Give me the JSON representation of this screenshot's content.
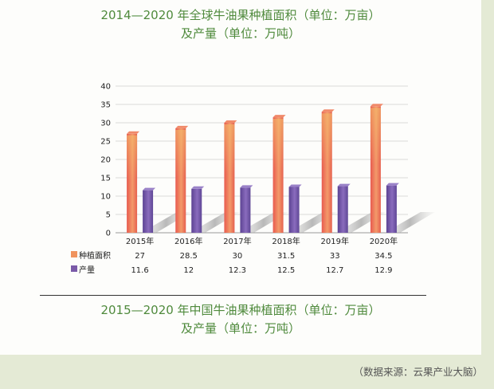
{
  "titles": {
    "line1": "2014—2020 年全球牛油果种植面积（单位：万亩）",
    "line2": "及产量（单位：万吨）",
    "line3": "2015—2020 年中国牛油果种植面积（单位：万亩）",
    "line4": "及产量（单位：万吨）"
  },
  "source": "（数据来源：云果产业大脑）",
  "chart_data": {
    "type": "bar",
    "categories": [
      "2015年",
      "2016年",
      "2017年",
      "2018年",
      "2019年",
      "2020年"
    ],
    "series": [
      {
        "name": "种植面积",
        "values": [
          27,
          28.5,
          30,
          31.5,
          33,
          34.5
        ],
        "color": "#e9725e"
      },
      {
        "name": "产量",
        "values": [
          11.6,
          12,
          12.3,
          12.5,
          12.7,
          12.9
        ],
        "color": "#7a5aa8"
      }
    ],
    "table_labels": {
      "s0": [
        "27",
        "28.5",
        "30",
        "31.5",
        "33",
        "34.5"
      ],
      "s1": [
        "11.6",
        "12",
        "12.3",
        "12.5",
        "12.7",
        "12.9"
      ]
    },
    "yticks": [
      "0",
      "5",
      "10",
      "15",
      "20",
      "25",
      "30",
      "35",
      "40"
    ],
    "ylim": [
      0,
      40
    ],
    "legend": "table-below"
  }
}
